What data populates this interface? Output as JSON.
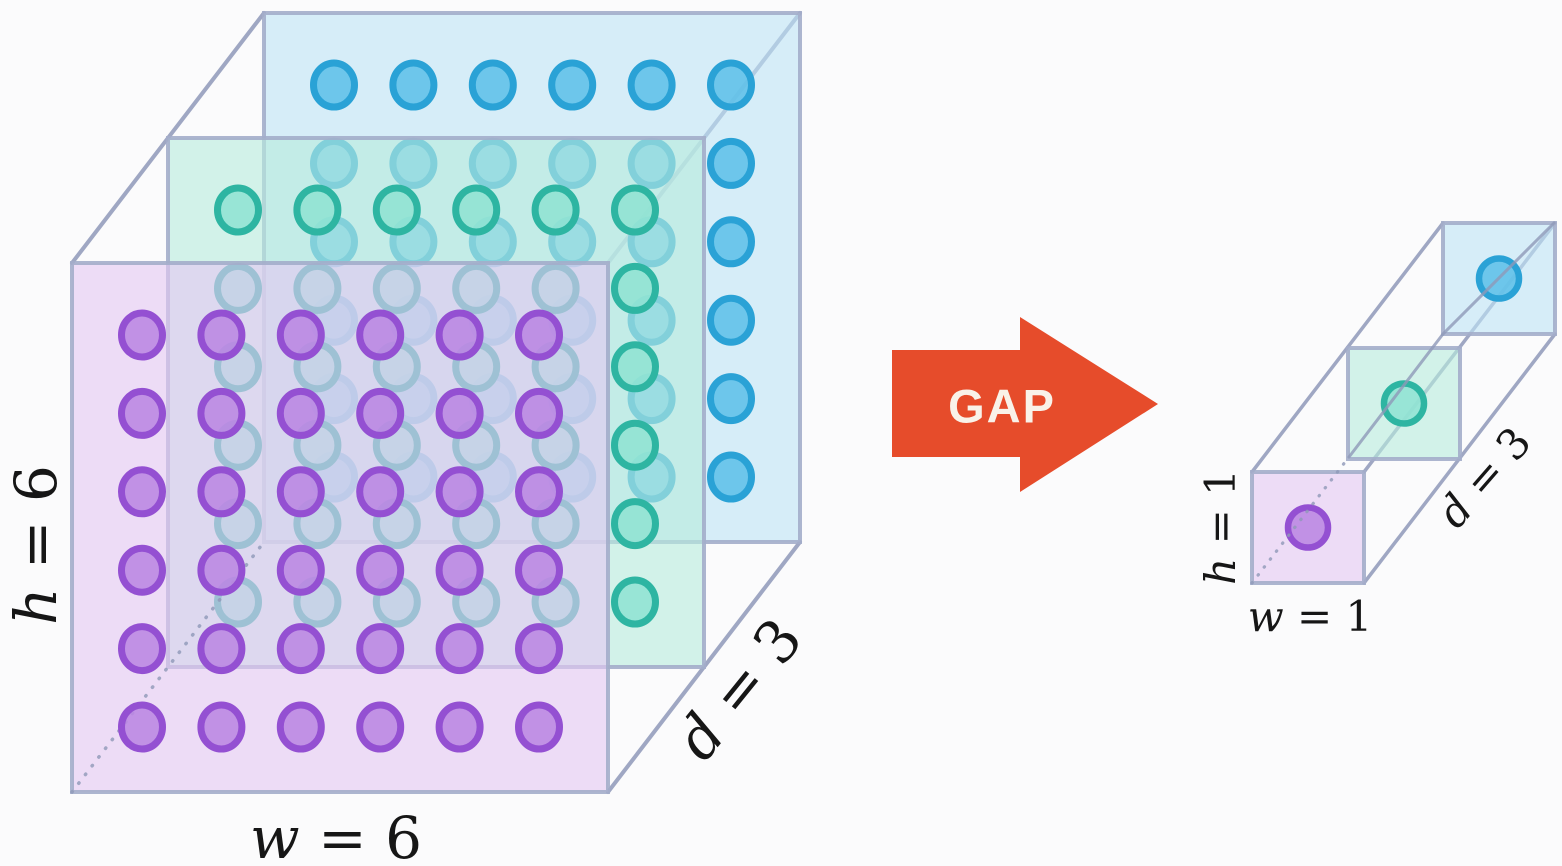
{
  "left_tensor": {
    "labels": {
      "height": {
        "var": "h",
        "rest": " = 6"
      },
      "width": {
        "var": "w",
        "rest": " = 6"
      },
      "depth": {
        "var": "d",
        "rest": " = 3"
      }
    },
    "grid": {
      "rows": 6,
      "cols": 6,
      "depth": 3
    },
    "planes": [
      {
        "name": "back-blue",
        "fill": "#bfe3f5",
        "circle_fill": "#5fc0e8",
        "circle_stroke": "#2aa2d6"
      },
      {
        "name": "middle-teal",
        "fill": "#b8ecdd",
        "circle_fill": "#8fe3d3",
        "circle_stroke": "#2eb5a2"
      },
      {
        "name": "front-purple",
        "fill": "#e3c8f2",
        "circle_fill": "#bb86e2",
        "circle_stroke": "#9450d2"
      }
    ],
    "edge_color": "#8e98b8",
    "border_color": "#a3adca"
  },
  "arrow": {
    "label": "GAP",
    "fill": "#e64c2b",
    "text_color": "#f9f2e9"
  },
  "right_tensor": {
    "labels": {
      "height": {
        "var": "h",
        "rest": " = 1"
      },
      "width": {
        "var": "w",
        "rest": " = 1"
      },
      "depth": {
        "var": "d",
        "rest": " = 3"
      }
    },
    "grid": {
      "rows": 1,
      "cols": 1,
      "depth": 3
    },
    "cells": [
      {
        "name": "back-blue",
        "fill": "#bfe3f5",
        "circle_fill": "#5fc0e8",
        "circle_stroke": "#2aa2d6"
      },
      {
        "name": "middle-teal",
        "fill": "#b8ecdd",
        "circle_fill": "#8fe3d3",
        "circle_stroke": "#2eb5a2"
      },
      {
        "name": "front-purple",
        "fill": "#e3c8f2",
        "circle_fill": "#bb86e2",
        "circle_stroke": "#9450d2"
      }
    ],
    "edge_color": "#8e98b8",
    "border_color": "#a3adca"
  }
}
